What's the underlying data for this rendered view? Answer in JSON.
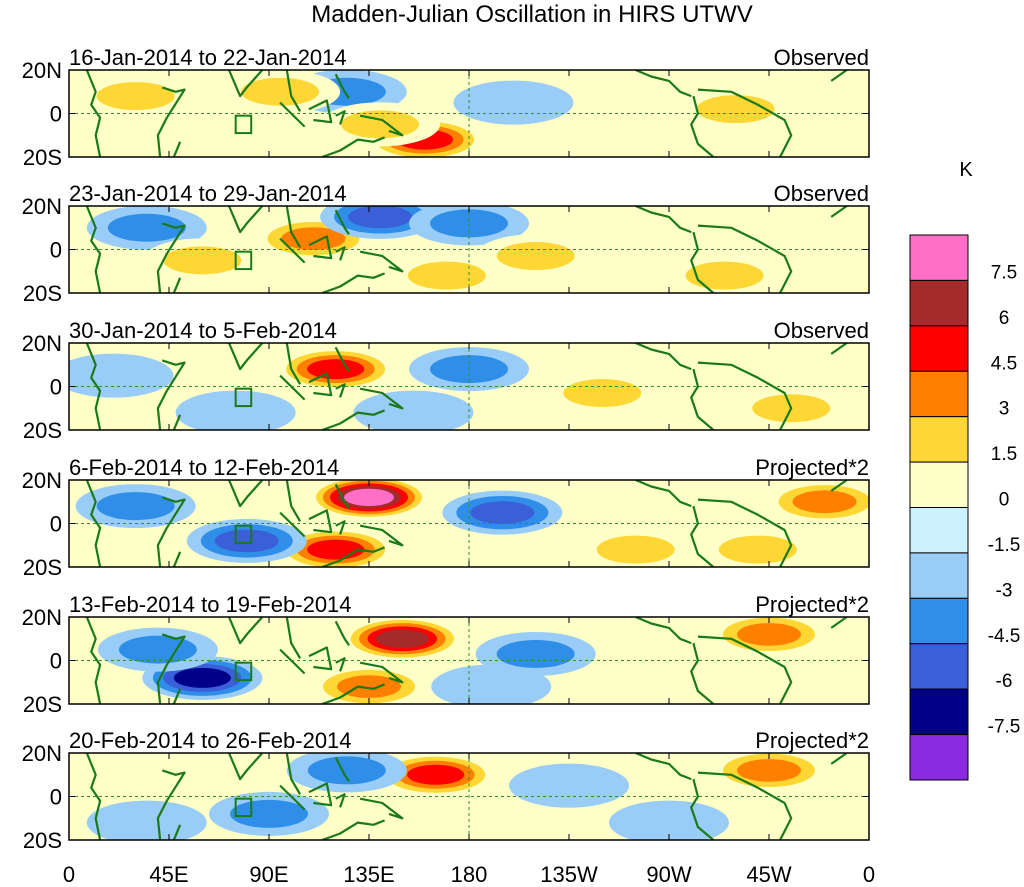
{
  "chart_data": {
    "type": "heatmap",
    "title": "Madden-Julian Oscillation in HIRS UTWV",
    "x_tick_labels": [
      "0",
      "45E",
      "90E",
      "135E",
      "180",
      "135W",
      "90W",
      "45W",
      "0"
    ],
    "x_ticks_deg": [
      0,
      45,
      90,
      135,
      180,
      225,
      270,
      315,
      360
    ],
    "y_tick_labels": [
      "20N",
      "0",
      "20S"
    ],
    "y_ticks_deg": [
      20,
      0,
      -20
    ],
    "xlim": [
      0,
      360
    ],
    "ylim": [
      -20,
      20
    ],
    "colorbar": {
      "unit": "K",
      "levels": [
        "7.5",
        "6",
        "4.5",
        "3",
        "1.5",
        "0",
        "-1.5",
        "-3",
        "-4.5",
        "-6",
        "-7.5"
      ],
      "level_values": [
        7.5,
        6,
        4.5,
        3,
        1.5,
        0,
        -1.5,
        -3,
        -4.5,
        -6,
        -7.5
      ],
      "colors": [
        "#ff6ec7",
        "#a52a2a",
        "#ff0000",
        "#ff7f00",
        "#ffd735",
        "#ffffc8",
        "#ccf2ff",
        "#99ccf7",
        "#2f8fe8",
        "#3a5fd8",
        "#00008b",
        "#8a2be2"
      ]
    },
    "panels": [
      {
        "period": "16-Jan-2014 to 22-Jan-2014",
        "kind": "Observed",
        "anomalies": [
          {
            "lon": 125,
            "lat": 10,
            "value": -3
          },
          {
            "lon": 160,
            "lat": -12,
            "value": 4.5
          },
          {
            "lon": 140,
            "lat": -5,
            "value": 2
          },
          {
            "lon": 30,
            "lat": 8,
            "value": 2
          },
          {
            "lon": 200,
            "lat": 5,
            "value": -1.5
          },
          {
            "lon": 300,
            "lat": 2,
            "value": 1.5
          },
          {
            "lon": 95,
            "lat": 10,
            "value": 1.5
          }
        ]
      },
      {
        "period": "23-Jan-2014 to 29-Jan-2014",
        "kind": "Observed",
        "anomalies": [
          {
            "lon": 110,
            "lat": 5,
            "value": 3
          },
          {
            "lon": 140,
            "lat": 15,
            "value": -4.5
          },
          {
            "lon": 180,
            "lat": 12,
            "value": -3
          },
          {
            "lon": 35,
            "lat": 10,
            "value": -3
          },
          {
            "lon": 170,
            "lat": -12,
            "value": 1.5
          },
          {
            "lon": 210,
            "lat": -3,
            "value": 1.5
          },
          {
            "lon": 295,
            "lat": -12,
            "value": 1.5
          },
          {
            "lon": 60,
            "lat": -5,
            "value": 1.5
          }
        ]
      },
      {
        "period": "30-Jan-2014 to 5-Feb-2014",
        "kind": "Observed",
        "anomalies": [
          {
            "lon": 120,
            "lat": 8,
            "value": 4.5
          },
          {
            "lon": 180,
            "lat": 8,
            "value": -3
          },
          {
            "lon": 155,
            "lat": -12,
            "value": -1.5
          },
          {
            "lon": 20,
            "lat": 5,
            "value": -1.5
          },
          {
            "lon": 75,
            "lat": -12,
            "value": -1.5
          },
          {
            "lon": 240,
            "lat": -3,
            "value": 1.5
          },
          {
            "lon": 325,
            "lat": -10,
            "value": 1.5
          }
        ]
      },
      {
        "period": "6-Feb-2014 to 12-Feb-2014",
        "kind": "Projected*2",
        "anomalies": [
          {
            "lon": 135,
            "lat": 12,
            "value": 7.5
          },
          {
            "lon": 120,
            "lat": -12,
            "value": 4.5
          },
          {
            "lon": 195,
            "lat": 5,
            "value": -4.5
          },
          {
            "lon": 80,
            "lat": -8,
            "value": -4.5
          },
          {
            "lon": 30,
            "lat": 8,
            "value": -3
          },
          {
            "lon": 255,
            "lat": -12,
            "value": 1.5
          },
          {
            "lon": 310,
            "lat": -12,
            "value": 1.5
          },
          {
            "lon": 340,
            "lat": 10,
            "value": 3
          }
        ]
      },
      {
        "period": "13-Feb-2014 to 19-Feb-2014",
        "kind": "Projected*2",
        "anomalies": [
          {
            "lon": 150,
            "lat": 10,
            "value": 6
          },
          {
            "lon": 135,
            "lat": -12,
            "value": 3
          },
          {
            "lon": 60,
            "lat": -8,
            "value": -6
          },
          {
            "lon": 210,
            "lat": 3,
            "value": -3
          },
          {
            "lon": 40,
            "lat": 5,
            "value": -3
          },
          {
            "lon": 315,
            "lat": 12,
            "value": 3
          },
          {
            "lon": 190,
            "lat": -12,
            "value": -1.5
          }
        ]
      },
      {
        "period": "20-Feb-2014 to 26-Feb-2014",
        "kind": "Projected*2",
        "anomalies": [
          {
            "lon": 165,
            "lat": 10,
            "value": 4.5
          },
          {
            "lon": 125,
            "lat": 12,
            "value": -3
          },
          {
            "lon": 90,
            "lat": -8,
            "value": -3
          },
          {
            "lon": 35,
            "lat": -12,
            "value": -1.5
          },
          {
            "lon": 225,
            "lat": 5,
            "value": -1.5
          },
          {
            "lon": 315,
            "lat": 12,
            "value": 3
          },
          {
            "lon": 270,
            "lat": -12,
            "value": -1.5
          }
        ]
      }
    ]
  }
}
